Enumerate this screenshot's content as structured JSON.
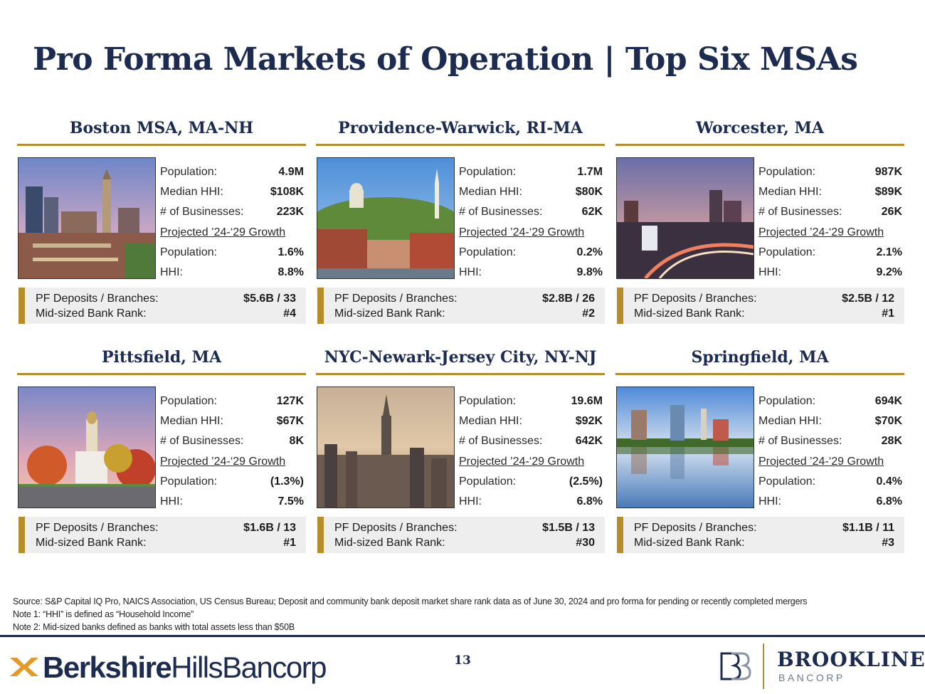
{
  "title": "Pro Forma Markets of Operation | Top Six MSAs",
  "labels": {
    "population": "Population:",
    "median_hhi": "Median HHI:",
    "businesses": "# of Businesses:",
    "growth_heading": "Projected ’24-‘29 Growth",
    "growth_population": "Population:",
    "growth_hhi": "HHI:",
    "deposits": "PF Deposits / Branches:",
    "rank": "Mid-sized Bank Rank:"
  },
  "markets": [
    {
      "name": "Boston MSA, MA-NH",
      "photo": "boston-skyline-photo",
      "population": "4.9M",
      "median_hhi": "$108K",
      "businesses": "223K",
      "growth_population": "1.6%",
      "growth_hhi": "8.8%",
      "deposits": "$5.6B / 33",
      "rank": "#4"
    },
    {
      "name": "Providence-Warwick, RI-MA",
      "photo": "providence-photo",
      "population": "1.7M",
      "median_hhi": "$80K",
      "businesses": "62K",
      "growth_population": "0.2%",
      "growth_hhi": "9.8%",
      "deposits": "$2.8B / 26",
      "rank": "#2"
    },
    {
      "name": "Worcester, MA",
      "photo": "worcester-photo",
      "population": "987K",
      "median_hhi": "$89K",
      "businesses": "26K",
      "growth_population": "2.1%",
      "growth_hhi": "9.2%",
      "deposits": "$2.5B / 12",
      "rank": "#1"
    },
    {
      "name": "Pittsfield, MA",
      "photo": "pittsfield-photo",
      "population": "127K",
      "median_hhi": "$67K",
      "businesses": "8K",
      "growth_population": "(1.3%)",
      "growth_hhi": "7.5%",
      "deposits": "$1.6B / 13",
      "rank": "#1"
    },
    {
      "name": "NYC-Newark-Jersey City, NY-NJ",
      "photo": "nyc-skyline-photo",
      "population": "19.6M",
      "median_hhi": "$92K",
      "businesses": "642K",
      "growth_population": "(2.5%)",
      "growth_hhi": "6.8%",
      "deposits": "$1.5B / 13",
      "rank": "#30"
    },
    {
      "name": "Springfield, MA",
      "photo": "springfield-photo",
      "population": "694K",
      "median_hhi": "$70K",
      "businesses": "28K",
      "growth_population": "0.4%",
      "growth_hhi": "6.8%",
      "deposits": "$1.1B / 11",
      "rank": "#3"
    }
  ],
  "notes": [
    "Source: S&P Capital IQ Pro, NAICS Association, US Census Bureau; Deposit and community bank deposit market share rank data as of June 30, 2024 and pro forma for pending or recently completed mergers",
    "Note 1: “HHI” is defined as “Household Income”",
    "Note 2: Mid-sized banks defined as banks with total assets less than $50B"
  ],
  "page_number": "13",
  "logos": {
    "berkshire_bold": "Berkshire",
    "berkshire_light": "HillsBancorp",
    "brookline_name": "BROOKLINE",
    "brookline_sub": "BANCORP"
  },
  "colors": {
    "navy": "#1c2b4f",
    "gold": "#b58d2b",
    "panel": "#eeeeee"
  }
}
